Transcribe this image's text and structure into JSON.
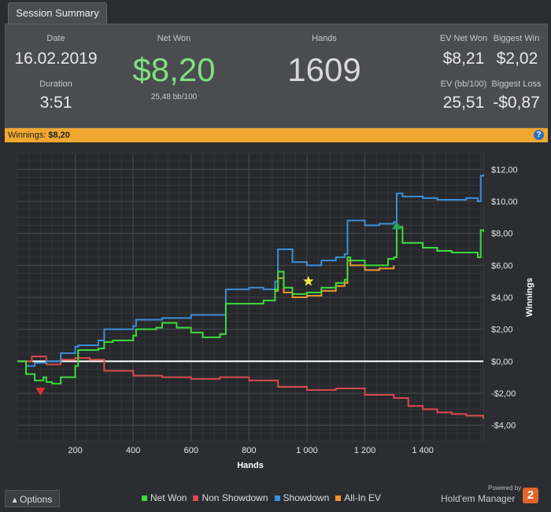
{
  "tab": {
    "label": "Session Summary"
  },
  "summary": {
    "date_label": "Date",
    "date": "16.02.2019",
    "duration_label": "Duration",
    "duration": "3:51",
    "net_won_label": "Net Won",
    "net_won": "$8,20",
    "bb100": "25,48 bb/100",
    "hands_label": "Hands",
    "hands": "1609",
    "ev_net_won_label": "EV Net Won",
    "ev_net_won": "$8,21",
    "biggest_win_label": "Biggest Win",
    "biggest_win": "$2,02",
    "ev_bb100_label": "EV (bb/100)",
    "ev_bb100": "25,51",
    "biggest_loss_label": "Biggest Loss",
    "biggest_loss": "-$0,87"
  },
  "winnings_bar": {
    "label": "Winnings:",
    "value": "$8,20",
    "info_icon": "info-icon"
  },
  "chart_data": {
    "type": "line",
    "xlabel": "Hands",
    "ylabel": "Winnings",
    "xlim": [
      0,
      1609
    ],
    "ylim": [
      -5,
      13
    ],
    "x_ticks": [
      200,
      400,
      600,
      800,
      1000,
      1200,
      1400
    ],
    "x_tick_labels": [
      "200",
      "400",
      "600",
      "800",
      "1 000",
      "1 200",
      "1 400"
    ],
    "y_ticks": [
      12,
      10,
      8,
      6,
      4,
      2,
      0,
      -2,
      -4
    ],
    "y_tick_labels": [
      "$12,00",
      "$10,00",
      "$8,00",
      "$6,00",
      "$4,00",
      "$2,00",
      "$0,00",
      "-$2,00",
      "-$4,00"
    ],
    "grid": true,
    "series": [
      {
        "name": "Net Won",
        "color": "#3ddc3d",
        "x": [
          0,
          30,
          60,
          90,
          100,
          120,
          150,
          200,
          210,
          280,
          300,
          330,
          400,
          410,
          480,
          500,
          550,
          600,
          640,
          700,
          720,
          750,
          800,
          850,
          890,
          900,
          920,
          950,
          1000,
          1050,
          1100,
          1130,
          1140,
          1150,
          1200,
          1250,
          1280,
          1300,
          1310,
          1330,
          1400,
          1450,
          1500,
          1550,
          1590,
          1600,
          1609
        ],
        "y": [
          0,
          -0.8,
          -1.2,
          -1.0,
          -1.3,
          -1.4,
          -1.0,
          -0.3,
          0.7,
          0.8,
          1.2,
          1.3,
          1.6,
          2.0,
          2.1,
          2.4,
          2.1,
          1.8,
          1.5,
          1.7,
          3.6,
          3.6,
          3.6,
          3.8,
          4.5,
          5.6,
          4.6,
          4.2,
          4.3,
          4.6,
          4.9,
          5.1,
          6.5,
          6.3,
          6.0,
          6.0,
          6.4,
          6.5,
          8.4,
          7.4,
          7.1,
          6.9,
          6.8,
          6.8,
          6.5,
          8.2,
          8.1
        ]
      },
      {
        "name": "Non Showdown",
        "color": "#d94b4b",
        "x": [
          0,
          50,
          100,
          150,
          200,
          250,
          300,
          400,
          500,
          600,
          700,
          800,
          900,
          1000,
          1100,
          1200,
          1300,
          1350,
          1400,
          1450,
          1500,
          1550,
          1609
        ],
        "y": [
          0,
          0.3,
          -0.2,
          0.1,
          0.2,
          0.1,
          -0.6,
          -0.9,
          -1.0,
          -1.1,
          -1.0,
          -1.2,
          -1.6,
          -1.8,
          -1.7,
          -2.1,
          -2.3,
          -2.8,
          -3.0,
          -3.2,
          -3.3,
          -3.4,
          -3.6
        ]
      },
      {
        "name": "Showdown",
        "color": "#3c8fd8",
        "x": [
          0,
          30,
          60,
          100,
          150,
          200,
          210,
          280,
          300,
          400,
          410,
          500,
          600,
          700,
          720,
          800,
          850,
          890,
          900,
          950,
          1000,
          1050,
          1100,
          1130,
          1140,
          1200,
          1250,
          1300,
          1310,
          1330,
          1400,
          1450,
          1500,
          1550,
          1590,
          1600,
          1609
        ],
        "y": [
          0,
          -0.3,
          -0.1,
          0,
          0.5,
          0.9,
          1.0,
          1.3,
          2.0,
          2.2,
          2.6,
          2.7,
          2.9,
          2.9,
          4.5,
          4.6,
          4.5,
          5.0,
          7.0,
          6.2,
          6.0,
          6.3,
          6.5,
          6.7,
          8.8,
          8.5,
          8.6,
          8.7,
          10.5,
          10.3,
          10.2,
          10.1,
          10.1,
          10.2,
          10.0,
          11.6,
          11.7
        ]
      },
      {
        "name": "All-In EV",
        "color": "#f0962c",
        "x": [
          890,
          900,
          920,
          950,
          1000,
          1050,
          1100,
          1130,
          1140,
          1150,
          1200,
          1250,
          1300
        ],
        "y": [
          4.4,
          5.2,
          4.3,
          4.0,
          4.1,
          4.4,
          4.7,
          4.9,
          6.3,
          6.0,
          5.7,
          5.8,
          6.0
        ]
      }
    ],
    "markers": [
      {
        "name": "biggest-loss-marker",
        "shape": "triangle-down",
        "color": "#e03030",
        "x": 80,
        "y": -1.9
      },
      {
        "name": "all-in-star-marker",
        "shape": "star",
        "color": "#f3e24a",
        "x": 1005,
        "y": 5.0
      },
      {
        "name": "biggest-win-marker",
        "shape": "triangle-up",
        "color": "#2fa35a",
        "x": 1310,
        "y": 8.5
      }
    ]
  },
  "legend": {
    "items": [
      {
        "label": "Net Won",
        "color": "#3ddc3d"
      },
      {
        "label": "Non Showdown",
        "color": "#d94b4b"
      },
      {
        "label": "Showdown",
        "color": "#3c8fd8"
      },
      {
        "label": "All-In EV",
        "color": "#f0962c"
      }
    ]
  },
  "options_button": {
    "label": "Options",
    "icon": "chevron-up-icon"
  },
  "brand": {
    "powered_by": "Powered by",
    "name": "Hold'em Manager",
    "logo_text": "2"
  }
}
